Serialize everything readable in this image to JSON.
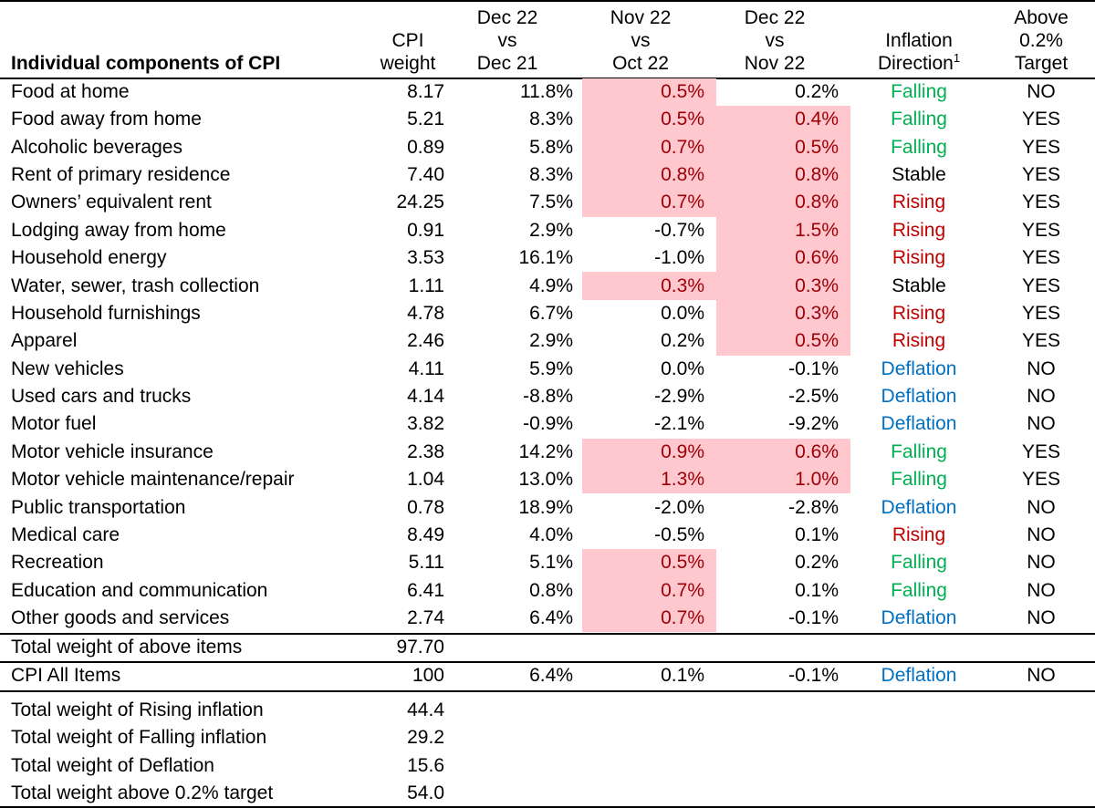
{
  "table": {
    "header": [
      {
        "lines": [
          "Individual components of CPI"
        ]
      },
      {
        "lines": [
          "CPI",
          "weight"
        ]
      },
      {
        "lines": [
          "Dec 22",
          "vs",
          "Dec 21"
        ]
      },
      {
        "lines": [
          "Nov 22",
          "vs",
          "Oct 22"
        ]
      },
      {
        "lines": [
          "Dec 22",
          "vs",
          "Nov 22"
        ]
      },
      {
        "lines": [
          "Inflation",
          "Direction"
        ],
        "sup": "1"
      },
      {
        "lines": [
          "Above",
          "0.2%",
          "Target"
        ]
      }
    ],
    "rows": [
      [
        "Food at home",
        "8.17",
        "11.8%",
        "0.5%",
        "0.2%",
        "Falling",
        "NO"
      ],
      [
        "Food away from home",
        "5.21",
        "8.3%",
        "0.5%",
        "0.4%",
        "Falling",
        "YES"
      ],
      [
        "Alcoholic beverages",
        "0.89",
        "5.8%",
        "0.7%",
        "0.5%",
        "Falling",
        "YES"
      ],
      [
        "Rent of primary residence",
        "7.40",
        "8.3%",
        "0.8%",
        "0.8%",
        "Stable",
        "YES"
      ],
      [
        "Owners’ equivalent rent",
        "24.25",
        "7.5%",
        "0.7%",
        "0.8%",
        "Rising",
        "YES"
      ],
      [
        "Lodging away from home",
        "0.91",
        "2.9%",
        "-0.7%",
        "1.5%",
        "Rising",
        "YES"
      ],
      [
        "Household energy",
        "3.53",
        "16.1%",
        "-1.0%",
        "0.6%",
        "Rising",
        "YES"
      ],
      [
        "Water, sewer, trash collection",
        "1.11",
        "4.9%",
        "0.3%",
        "0.3%",
        "Stable",
        "YES"
      ],
      [
        "Household furnishings",
        "4.78",
        "6.7%",
        "0.0%",
        "0.3%",
        "Rising",
        "YES"
      ],
      [
        "Apparel",
        "2.46",
        "2.9%",
        "0.2%",
        "0.5%",
        "Rising",
        "YES"
      ],
      [
        "New vehicles",
        "4.11",
        "5.9%",
        "0.0%",
        "-0.1%",
        "Deflation",
        "NO"
      ],
      [
        "Used cars and trucks",
        "4.14",
        "-8.8%",
        "-2.9%",
        "-2.5%",
        "Deflation",
        "NO"
      ],
      [
        "Motor fuel",
        "3.82",
        "-0.9%",
        "-2.1%",
        "-9.2%",
        "Deflation",
        "NO"
      ],
      [
        "Motor vehicle insurance",
        "2.38",
        "14.2%",
        "0.9%",
        "0.6%",
        "Falling",
        "YES"
      ],
      [
        "Motor vehicle maintenance/repair",
        "1.04",
        "13.0%",
        "1.3%",
        "1.0%",
        "Falling",
        "YES"
      ],
      [
        "Public transportation",
        "0.78",
        "18.9%",
        "-2.0%",
        "-2.8%",
        "Deflation",
        "NO"
      ],
      [
        "Medical care",
        "8.49",
        "4.0%",
        "-0.5%",
        "0.1%",
        "Rising",
        "NO"
      ],
      [
        "Recreation",
        "5.11",
        "5.1%",
        "0.5%",
        "0.2%",
        "Falling",
        "NO"
      ],
      [
        "Education and communication",
        "6.41",
        "0.8%",
        "0.7%",
        "0.1%",
        "Falling",
        "NO"
      ],
      [
        "Other goods and services",
        "2.74",
        "6.4%",
        "0.7%",
        "-0.1%",
        "Deflation",
        "NO"
      ]
    ],
    "highlight": [
      [
        3
      ],
      [
        3,
        4
      ],
      [
        3,
        4
      ],
      [
        3,
        4
      ],
      [
        3,
        4
      ],
      [
        4
      ],
      [
        4
      ],
      [
        3,
        4
      ],
      [
        4
      ],
      [
        4
      ],
      [],
      [],
      [],
      [
        3,
        4
      ],
      [
        3,
        4
      ],
      [],
      [],
      [
        3
      ],
      [
        3
      ],
      [
        3
      ]
    ],
    "highlight_fill": "#ffc7ce",
    "highlight_text": "#9c0006",
    "direction_colors": {
      "Falling": "#00b050",
      "Rising": "#c00000",
      "Deflation": "#0070c0",
      "Stable": "#000000"
    },
    "total_row": [
      "Total weight of above items",
      "97.70"
    ],
    "all_items_row": [
      "CPI All Items",
      "100",
      "6.4%",
      "0.1%",
      "-0.1%",
      "Deflation",
      "NO"
    ],
    "summary": [
      [
        "Total weight of Rising inflation",
        "44.4"
      ],
      [
        "Total weight of Falling inflation",
        "29.2"
      ],
      [
        "Total weight of Deflation",
        "15.6"
      ],
      [
        "Total weight above 0.2% target",
        "54.0"
      ]
    ]
  }
}
